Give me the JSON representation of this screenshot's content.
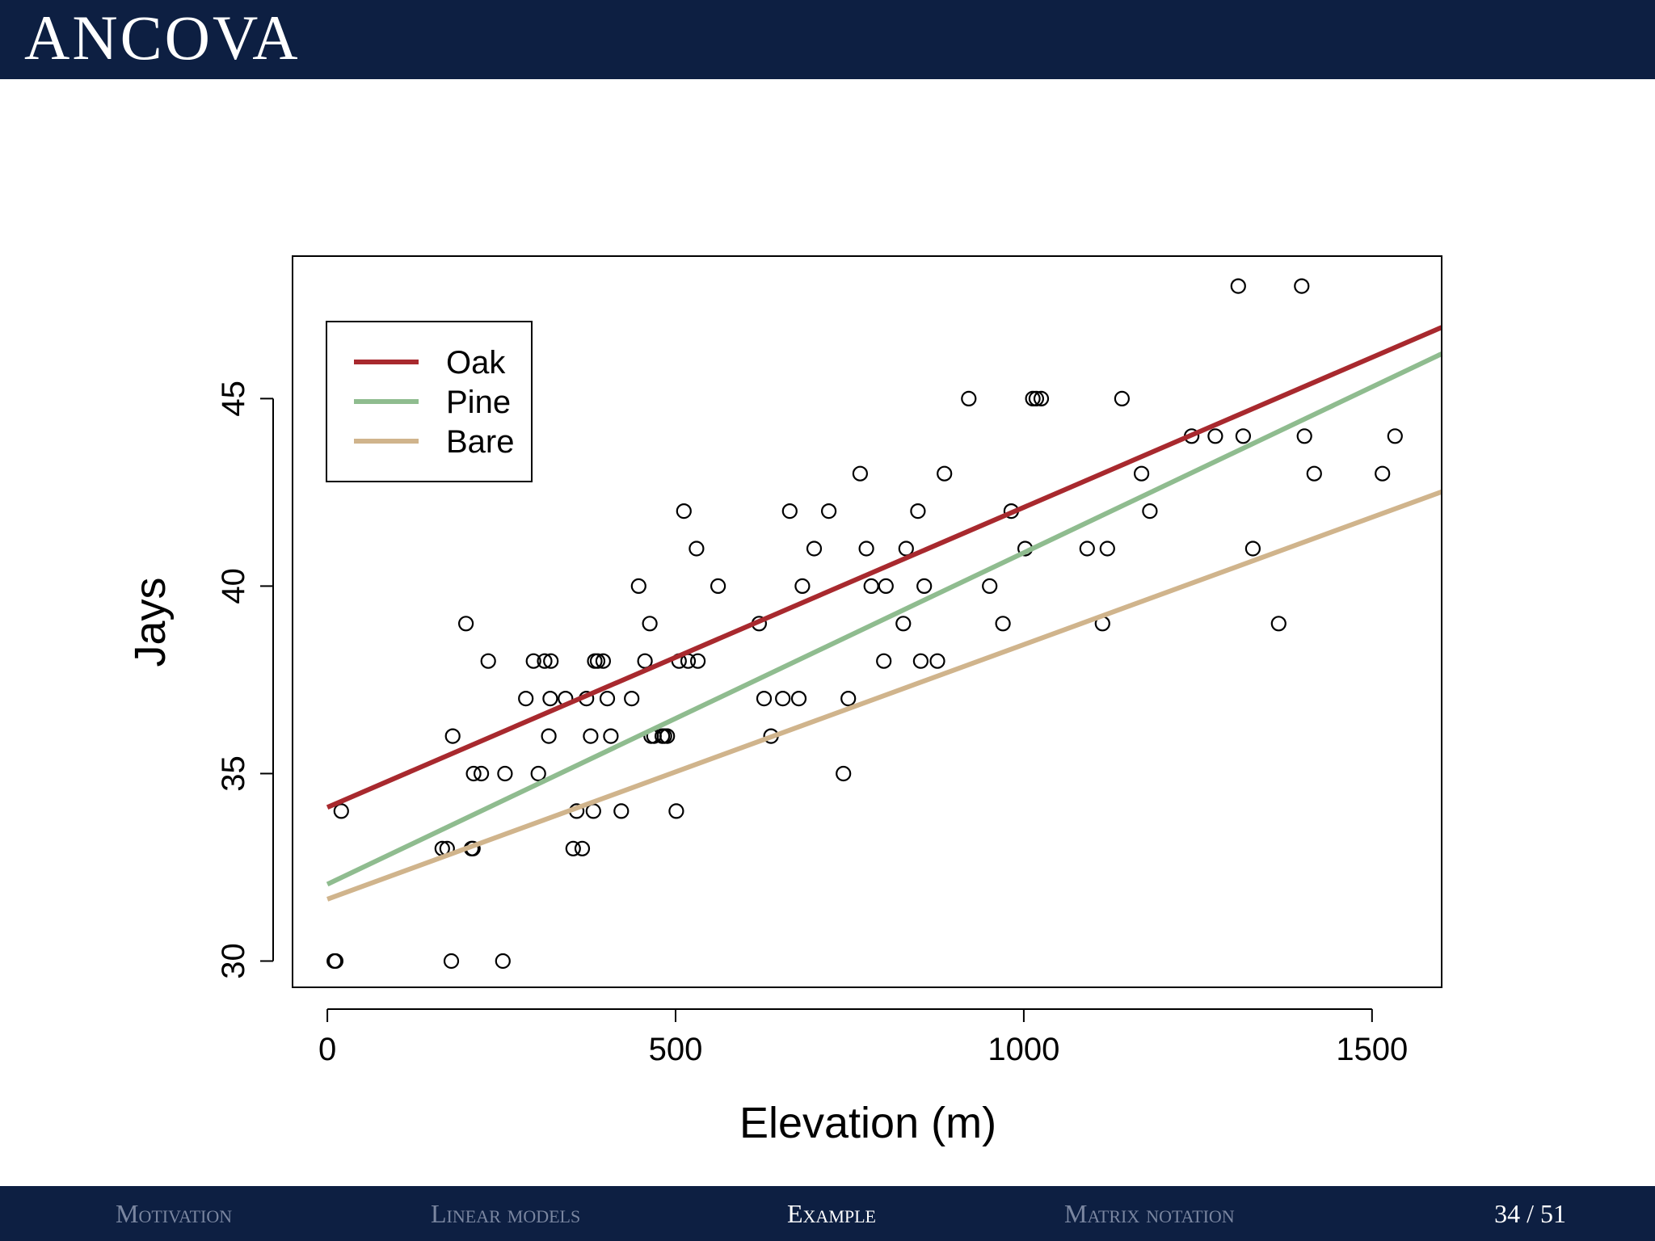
{
  "slide": {
    "title": "ANCOVA",
    "page_current": "34",
    "page_total": "51"
  },
  "nav": {
    "items": [
      {
        "label": "Motivation",
        "active": false
      },
      {
        "label": "Linear models",
        "active": false
      },
      {
        "label": "Example",
        "active": true
      },
      {
        "label": "Matrix notation",
        "active": false
      }
    ]
  },
  "chart_data": {
    "type": "scatter",
    "title": "",
    "xlabel": "Elevation (m)",
    "ylabel": "Jays",
    "xlim": [
      -50,
      1600
    ],
    "ylim": [
      29.3,
      48.8
    ],
    "xticks": [
      0,
      500,
      1000,
      1500
    ],
    "yticks": [
      30,
      35,
      40,
      45
    ],
    "legend": {
      "position": "top-left",
      "entries": [
        "Oak",
        "Pine",
        "Bare"
      ]
    },
    "points": [
      {
        "x": 10,
        "y": 30
      },
      {
        "x": 12,
        "y": 30
      },
      {
        "x": 20,
        "y": 34
      },
      {
        "x": 178,
        "y": 30
      },
      {
        "x": 252,
        "y": 30
      },
      {
        "x": 165,
        "y": 33
      },
      {
        "x": 172,
        "y": 33
      },
      {
        "x": 207,
        "y": 33
      },
      {
        "x": 209,
        "y": 33
      },
      {
        "x": 180,
        "y": 36
      },
      {
        "x": 199,
        "y": 39
      },
      {
        "x": 210,
        "y": 35
      },
      {
        "x": 221,
        "y": 35
      },
      {
        "x": 231,
        "y": 38
      },
      {
        "x": 255,
        "y": 35
      },
      {
        "x": 285,
        "y": 37
      },
      {
        "x": 296,
        "y": 38
      },
      {
        "x": 303,
        "y": 35
      },
      {
        "x": 312,
        "y": 38
      },
      {
        "x": 318,
        "y": 36
      },
      {
        "x": 320,
        "y": 37
      },
      {
        "x": 321,
        "y": 38
      },
      {
        "x": 342,
        "y": 37
      },
      {
        "x": 353,
        "y": 33
      },
      {
        "x": 358,
        "y": 34
      },
      {
        "x": 366,
        "y": 33
      },
      {
        "x": 372,
        "y": 37
      },
      {
        "x": 378,
        "y": 36
      },
      {
        "x": 382,
        "y": 34
      },
      {
        "x": 384,
        "y": 38
      },
      {
        "x": 388,
        "y": 38
      },
      {
        "x": 396,
        "y": 38
      },
      {
        "x": 402,
        "y": 37
      },
      {
        "x": 407,
        "y": 36
      },
      {
        "x": 422,
        "y": 34
      },
      {
        "x": 437,
        "y": 37
      },
      {
        "x": 447,
        "y": 40
      },
      {
        "x": 456,
        "y": 38
      },
      {
        "x": 463,
        "y": 39
      },
      {
        "x": 465,
        "y": 36
      },
      {
        "x": 469,
        "y": 36
      },
      {
        "x": 481,
        "y": 36
      },
      {
        "x": 484,
        "y": 36
      },
      {
        "x": 488,
        "y": 36
      },
      {
        "x": 501,
        "y": 34
      },
      {
        "x": 505,
        "y": 38
      },
      {
        "x": 512,
        "y": 42
      },
      {
        "x": 518,
        "y": 38
      },
      {
        "x": 530,
        "y": 41
      },
      {
        "x": 532,
        "y": 38
      },
      {
        "x": 561,
        "y": 40
      },
      {
        "x": 620,
        "y": 39
      },
      {
        "x": 627,
        "y": 37
      },
      {
        "x": 637,
        "y": 36
      },
      {
        "x": 654,
        "y": 37
      },
      {
        "x": 664,
        "y": 42
      },
      {
        "x": 677,
        "y": 37
      },
      {
        "x": 682,
        "y": 40
      },
      {
        "x": 699,
        "y": 41
      },
      {
        "x": 720,
        "y": 42
      },
      {
        "x": 741,
        "y": 35
      },
      {
        "x": 748,
        "y": 37
      },
      {
        "x": 765,
        "y": 43
      },
      {
        "x": 774,
        "y": 41
      },
      {
        "x": 781,
        "y": 40
      },
      {
        "x": 799,
        "y": 38
      },
      {
        "x": 802,
        "y": 40
      },
      {
        "x": 827,
        "y": 39
      },
      {
        "x": 831,
        "y": 41
      },
      {
        "x": 848,
        "y": 42
      },
      {
        "x": 852,
        "y": 38
      },
      {
        "x": 857,
        "y": 40
      },
      {
        "x": 876,
        "y": 38
      },
      {
        "x": 886,
        "y": 43
      },
      {
        "x": 921,
        "y": 45
      },
      {
        "x": 951,
        "y": 40
      },
      {
        "x": 970,
        "y": 39
      },
      {
        "x": 982,
        "y": 42
      },
      {
        "x": 1002,
        "y": 41
      },
      {
        "x": 1013,
        "y": 45
      },
      {
        "x": 1018,
        "y": 45
      },
      {
        "x": 1025,
        "y": 45
      },
      {
        "x": 1091,
        "y": 41
      },
      {
        "x": 1113,
        "y": 39
      },
      {
        "x": 1120,
        "y": 41
      },
      {
        "x": 1141,
        "y": 45
      },
      {
        "x": 1169,
        "y": 43
      },
      {
        "x": 1181,
        "y": 42
      },
      {
        "x": 1241,
        "y": 44
      },
      {
        "x": 1275,
        "y": 44
      },
      {
        "x": 1308,
        "y": 48
      },
      {
        "x": 1315,
        "y": 44
      },
      {
        "x": 1329,
        "y": 41
      },
      {
        "x": 1366,
        "y": 39
      },
      {
        "x": 1399,
        "y": 48
      },
      {
        "x": 1403,
        "y": 44
      },
      {
        "x": 1417,
        "y": 43
      },
      {
        "x": 1515,
        "y": 43
      },
      {
        "x": 1533,
        "y": 44
      }
    ],
    "series": [
      {
        "name": "Oak",
        "color": "#a8292e",
        "intercept": 34.1,
        "slope": 0.008
      },
      {
        "name": "Pine",
        "color": "#8fbc8f",
        "intercept": 32.05,
        "slope": 0.00884
      },
      {
        "name": "Bare",
        "color": "#d0b48c",
        "intercept": 31.65,
        "slope": 0.00679
      }
    ]
  }
}
